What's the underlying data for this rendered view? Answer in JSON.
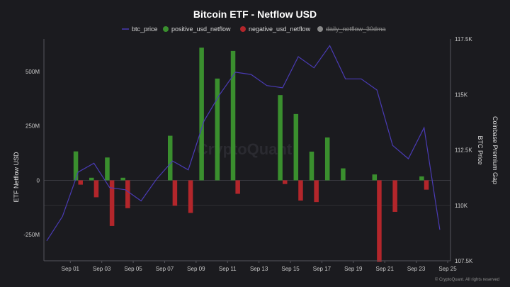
{
  "chart_data": {
    "type": "bar",
    "title": "Bitcoin ETF - Netflow USD",
    "ylabel_left": "ETF Netflow USD",
    "ylabel_right_outer": "Coinbase Premium Gap",
    "ylabel_right_inner": "BTC Price",
    "watermark": "CryptoQuant",
    "credit": "© CryptoQuant. All rights reserved",
    "legend": [
      {
        "name": "btc_price",
        "color": "#4a3bb5",
        "kind": "line",
        "hidden": false
      },
      {
        "name": "positive_usd_netflow",
        "color": "#3a8f2e",
        "kind": "dot",
        "hidden": false
      },
      {
        "name": "negative_usd_netflow",
        "color": "#b3262b",
        "kind": "dot",
        "hidden": false
      },
      {
        "name": "daily_netflow_30dma",
        "color": "#8a8a8a",
        "kind": "dot",
        "hidden": true
      }
    ],
    "left_axis": {
      "ylim": [
        -370,
        650
      ],
      "ticks": [
        {
          "v": 500,
          "label": "500M"
        },
        {
          "v": 250,
          "label": "250M"
        },
        {
          "v": 0,
          "label": "0"
        },
        {
          "v": -250,
          "label": "-250M"
        }
      ]
    },
    "right_axis": {
      "ylim": [
        107.5,
        117.5
      ],
      "ticks": [
        {
          "v": 117.5,
          "label": "117.5K"
        },
        {
          "v": 115,
          "label": "115K"
        },
        {
          "v": 112.5,
          "label": "112.5K"
        },
        {
          "v": 110,
          "label": "110K"
        },
        {
          "v": 107.5,
          "label": "107.5K"
        }
      ]
    },
    "x_range": [
      -1,
      50
    ],
    "x_ticks": [
      {
        "i": 2,
        "label": "Sep 01"
      },
      {
        "i": 6,
        "label": "Sep 03"
      },
      {
        "i": 10,
        "label": "Sep 05"
      },
      {
        "i": 14,
        "label": "Sep 07"
      },
      {
        "i": 18,
        "label": "Sep 09"
      },
      {
        "i": 22,
        "label": "Sep 11"
      },
      {
        "i": 26,
        "label": "Sep 13"
      },
      {
        "i": 30,
        "label": "Sep 15"
      },
      {
        "i": 34,
        "label": "Sep 17"
      },
      {
        "i": 38,
        "label": "Sep 19"
      },
      {
        "i": 42,
        "label": "Sep 21"
      },
      {
        "i": 46,
        "label": "Sep 23"
      },
      {
        "i": 50,
        "label": "Sep 25"
      }
    ],
    "positive_usd_netflow": [
      {
        "i": 2.7,
        "v": 133
      },
      {
        "i": 4.7,
        "v": 12
      },
      {
        "i": 6.7,
        "v": 105
      },
      {
        "i": 8.7,
        "v": 12
      },
      {
        "i": 14.7,
        "v": 205
      },
      {
        "i": 18.7,
        "v": 610
      },
      {
        "i": 20.7,
        "v": 468
      },
      {
        "i": 22.7,
        "v": 595
      },
      {
        "i": 28.7,
        "v": 392
      },
      {
        "i": 30.7,
        "v": 305
      },
      {
        "i": 32.7,
        "v": 132
      },
      {
        "i": 34.7,
        "v": 197
      },
      {
        "i": 36.7,
        "v": 55
      },
      {
        "i": 40.7,
        "v": 27
      },
      {
        "i": 46.7,
        "v": 18
      }
    ],
    "negative_usd_netflow": [
      {
        "i": 3.3,
        "v": -20
      },
      {
        "i": 5.3,
        "v": -78
      },
      {
        "i": 7.3,
        "v": -210
      },
      {
        "i": 9.3,
        "v": -128
      },
      {
        "i": 15.3,
        "v": -117
      },
      {
        "i": 17.3,
        "v": -150
      },
      {
        "i": 23.3,
        "v": -62
      },
      {
        "i": 29.3,
        "v": -17
      },
      {
        "i": 31.3,
        "v": -93
      },
      {
        "i": 33.3,
        "v": -100
      },
      {
        "i": 41.3,
        "v": -375
      },
      {
        "i": 43.3,
        "v": -145
      },
      {
        "i": 47.3,
        "v": -43
      }
    ],
    "btc_price": [
      {
        "i": -1,
        "v": 108.4
      },
      {
        "i": 1,
        "v": 109.5
      },
      {
        "i": 3,
        "v": 111.5
      },
      {
        "i": 5,
        "v": 111.9
      },
      {
        "i": 7,
        "v": 110.8
      },
      {
        "i": 9,
        "v": 110.7
      },
      {
        "i": 11,
        "v": 110.2
      },
      {
        "i": 13,
        "v": 111.2
      },
      {
        "i": 15,
        "v": 112.0
      },
      {
        "i": 17,
        "v": 111.6
      },
      {
        "i": 19,
        "v": 113.8
      },
      {
        "i": 21,
        "v": 115.0
      },
      {
        "i": 23,
        "v": 116.0
      },
      {
        "i": 25,
        "v": 115.9
      },
      {
        "i": 27,
        "v": 115.4
      },
      {
        "i": 29,
        "v": 115.3
      },
      {
        "i": 31,
        "v": 116.7
      },
      {
        "i": 33,
        "v": 116.2
      },
      {
        "i": 35,
        "v": 117.2
      },
      {
        "i": 37,
        "v": 115.7
      },
      {
        "i": 39,
        "v": 115.7
      },
      {
        "i": 41,
        "v": 115.2
      },
      {
        "i": 43,
        "v": 112.7
      },
      {
        "i": 45,
        "v": 112.1
      },
      {
        "i": 47,
        "v": 113.5
      },
      {
        "i": 49,
        "v": 108.9
      }
    ]
  }
}
